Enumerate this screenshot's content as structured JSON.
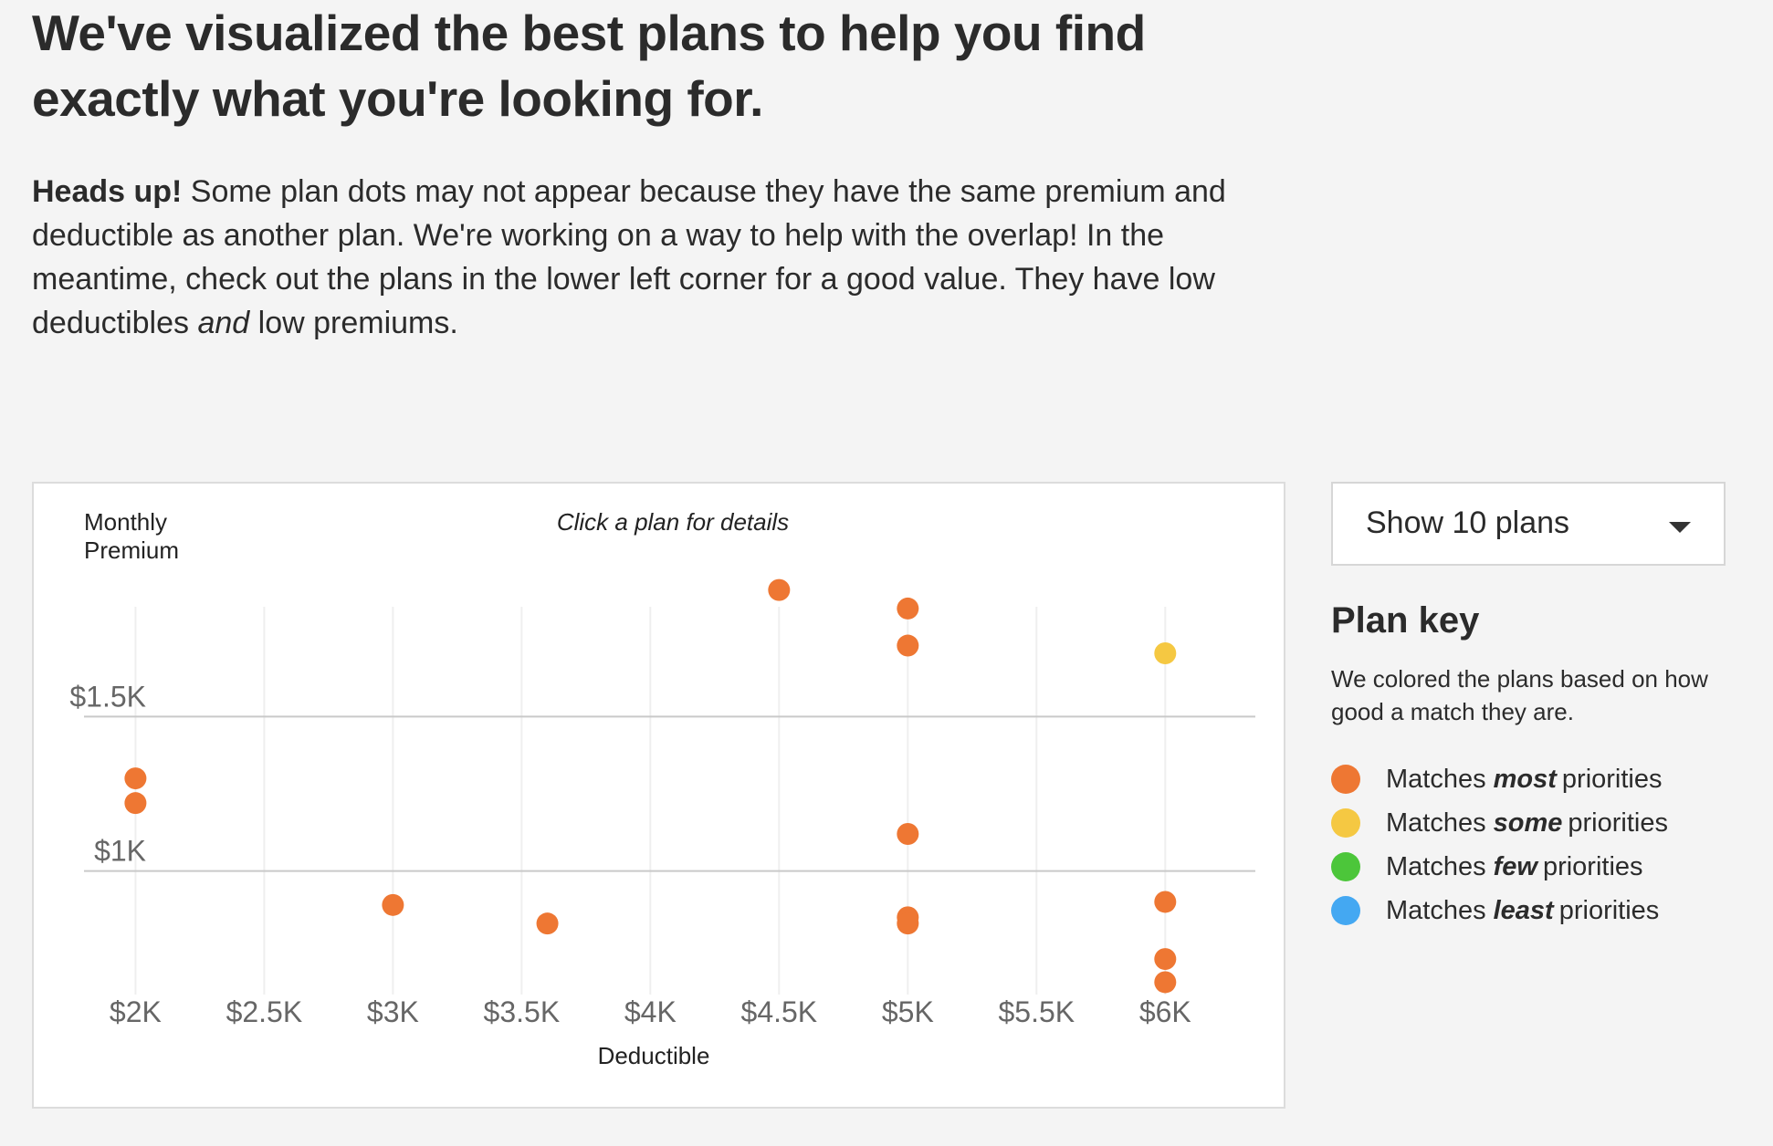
{
  "headline": "We've visualized the best plans to help you find exactly what you're looking for.",
  "notice": {
    "strong": "Heads up!",
    "text1": " Some plan dots may not appear because they have the same premium and deductible as another plan. We're working on a way to help with the overlap! In the meantime, check out the plans in the lower left corner for a good value. They have low deductibles ",
    "em": "and",
    "text2": " low premiums."
  },
  "select": {
    "label": "Show 10 plans",
    "icon": "chevron-down-icon"
  },
  "plan_key": {
    "title": "Plan key",
    "description": "We colored the plans based on how good a match they are.",
    "items": [
      {
        "prefix": "Matches",
        "emphasis": "most",
        "suffix": "priorities",
        "color": "#ee7733"
      },
      {
        "prefix": "Matches",
        "emphasis": "some",
        "suffix": "priorities",
        "color": "#f5c842"
      },
      {
        "prefix": "Matches",
        "emphasis": "few",
        "suffix": "priorities",
        "color": "#4cc63a"
      },
      {
        "prefix": "Matches",
        "emphasis": "least",
        "suffix": "priorities",
        "color": "#44a8f2"
      }
    ]
  },
  "chart_data": {
    "type": "scatter",
    "title": "Click a plan for details",
    "xlabel": "Deductible",
    "ylabel": "Monthly Premium",
    "xlim": [
      1800,
      6350
    ],
    "ylim": [
      600,
      1900
    ],
    "x_ticks": [
      2000,
      2500,
      3000,
      3500,
      4000,
      4500,
      5000,
      5500,
      6000
    ],
    "x_tick_labels": [
      "$2K",
      "$2.5K",
      "$3K",
      "$3.5K",
      "$4K",
      "$4.5K",
      "$5K",
      "$5.5K",
      "$6K"
    ],
    "y_ticks": [
      1000,
      1500
    ],
    "y_tick_labels": [
      "$1K",
      "$1.5K"
    ],
    "grid": true,
    "series": [
      {
        "name": "Matches most priorities",
        "color": "#ee7733",
        "points": [
          {
            "x": 2000,
            "y": 1300
          },
          {
            "x": 2000,
            "y": 1220
          },
          {
            "x": 3000,
            "y": 890
          },
          {
            "x": 3600,
            "y": 830
          },
          {
            "x": 4500,
            "y": 1910
          },
          {
            "x": 5000,
            "y": 1850
          },
          {
            "x": 5000,
            "y": 1730
          },
          {
            "x": 5000,
            "y": 1120
          },
          {
            "x": 5000,
            "y": 850
          },
          {
            "x": 5000,
            "y": 830
          },
          {
            "x": 6000,
            "y": 900
          },
          {
            "x": 6000,
            "y": 715
          },
          {
            "x": 6000,
            "y": 640
          }
        ]
      },
      {
        "name": "Matches some priorities",
        "color": "#f5c842",
        "points": [
          {
            "x": 6000,
            "y": 1705
          }
        ]
      }
    ]
  }
}
